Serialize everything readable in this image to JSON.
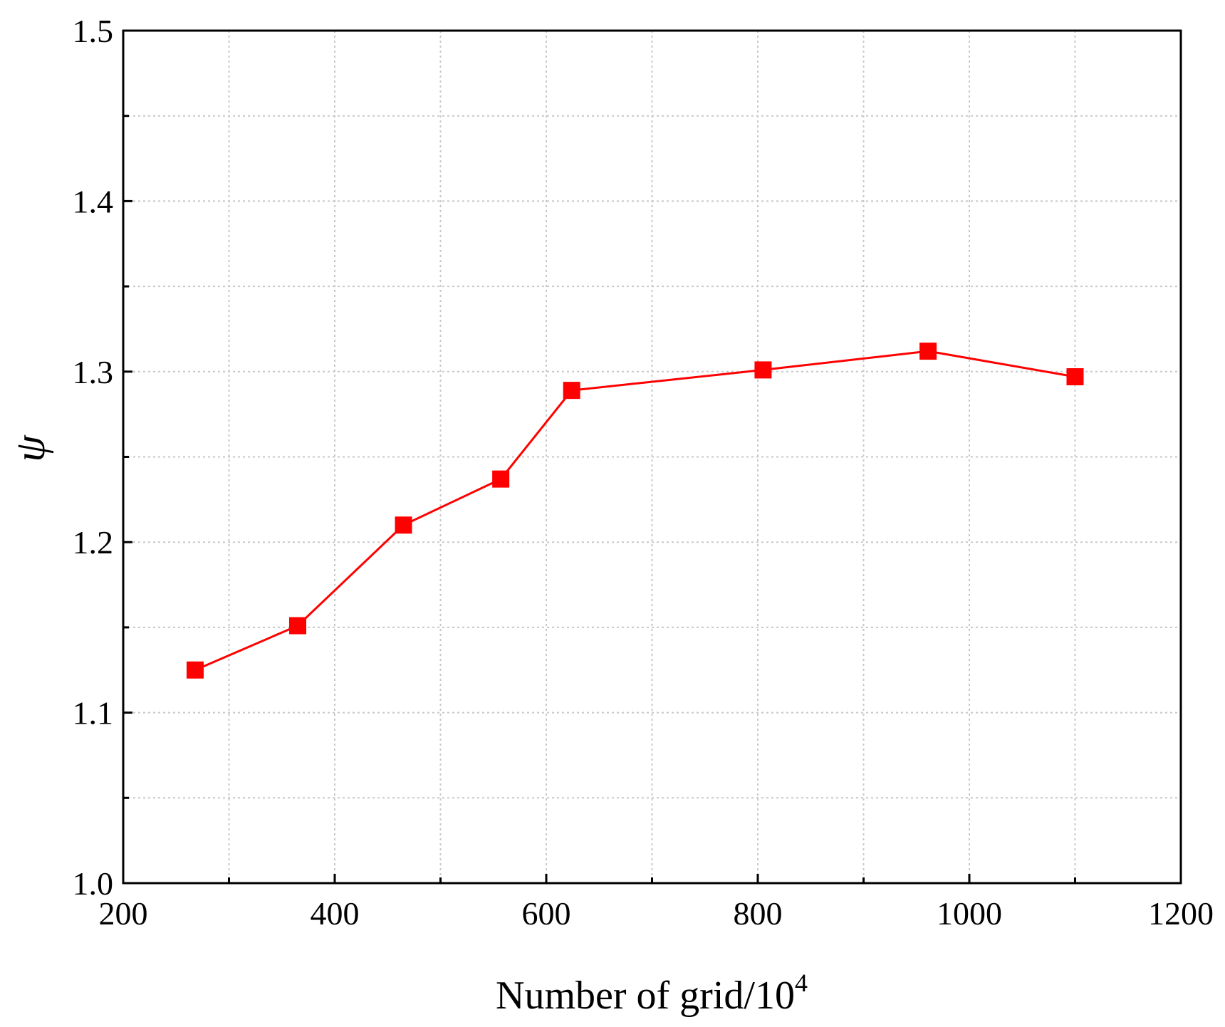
{
  "chart_data": {
    "type": "line",
    "xlabel": "Number of grid/10",
    "xlabel_superscript": "4",
    "ylabel": "ψ",
    "xlim": [
      200,
      1200
    ],
    "ylim": [
      1.0,
      1.5
    ],
    "x_major_ticks": [
      200,
      400,
      600,
      800,
      1000,
      1200
    ],
    "x_tick_labels": [
      "200",
      "400",
      "600",
      "800",
      "1000",
      "1200"
    ],
    "x_minor_ticks": [
      300,
      500,
      700,
      900,
      1100
    ],
    "y_major_ticks": [
      1.0,
      1.1,
      1.2,
      1.3,
      1.4,
      1.5
    ],
    "y_tick_labels": [
      "1.0",
      "1.1",
      "1.2",
      "1.3",
      "1.4",
      "1.5"
    ],
    "y_minor_ticks": [
      1.05,
      1.15,
      1.25,
      1.35,
      1.45
    ],
    "grid": true,
    "series": [
      {
        "color": "#ff0000",
        "marker": "square",
        "x": [
          268,
          365,
          465,
          557,
          624,
          805,
          961,
          1100
        ],
        "y": [
          1.125,
          1.151,
          1.21,
          1.237,
          1.289,
          1.301,
          1.312,
          1.297
        ]
      }
    ]
  }
}
